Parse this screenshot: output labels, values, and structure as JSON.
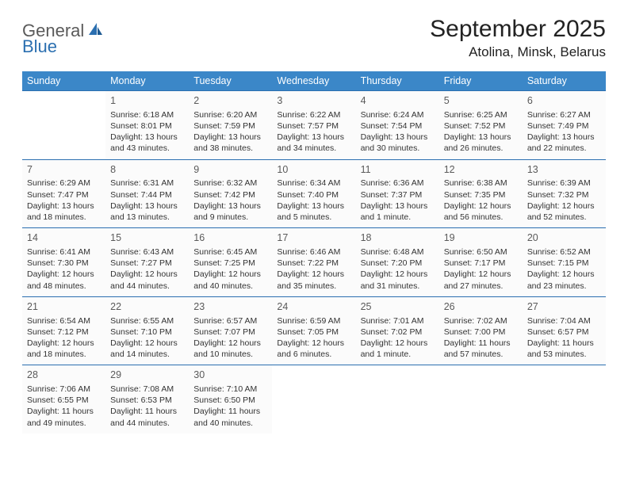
{
  "logo": {
    "word1": "General",
    "word2": "Blue"
  },
  "title": "September 2025",
  "location": "Atolina, Minsk, Belarus",
  "colors": {
    "header_bg": "#3b87c8",
    "header_text": "#ffffff",
    "border": "#2b6fb0",
    "logo_gray": "#5a5a5a",
    "logo_blue": "#2b6fb0",
    "cell_bg": "#fbfbfb",
    "page_bg": "#ffffff",
    "text": "#333333"
  },
  "dayNames": [
    "Sunday",
    "Monday",
    "Tuesday",
    "Wednesday",
    "Thursday",
    "Friday",
    "Saturday"
  ],
  "weeks": [
    [
      {
        "blank": true
      },
      {
        "d": "1",
        "sr": "Sunrise: 6:18 AM",
        "ss": "Sunset: 8:01 PM",
        "dl": "Daylight: 13 hours and 43 minutes."
      },
      {
        "d": "2",
        "sr": "Sunrise: 6:20 AM",
        "ss": "Sunset: 7:59 PM",
        "dl": "Daylight: 13 hours and 38 minutes."
      },
      {
        "d": "3",
        "sr": "Sunrise: 6:22 AM",
        "ss": "Sunset: 7:57 PM",
        "dl": "Daylight: 13 hours and 34 minutes."
      },
      {
        "d": "4",
        "sr": "Sunrise: 6:24 AM",
        "ss": "Sunset: 7:54 PM",
        "dl": "Daylight: 13 hours and 30 minutes."
      },
      {
        "d": "5",
        "sr": "Sunrise: 6:25 AM",
        "ss": "Sunset: 7:52 PM",
        "dl": "Daylight: 13 hours and 26 minutes."
      },
      {
        "d": "6",
        "sr": "Sunrise: 6:27 AM",
        "ss": "Sunset: 7:49 PM",
        "dl": "Daylight: 13 hours and 22 minutes."
      }
    ],
    [
      {
        "d": "7",
        "sr": "Sunrise: 6:29 AM",
        "ss": "Sunset: 7:47 PM",
        "dl": "Daylight: 13 hours and 18 minutes."
      },
      {
        "d": "8",
        "sr": "Sunrise: 6:31 AM",
        "ss": "Sunset: 7:44 PM",
        "dl": "Daylight: 13 hours and 13 minutes."
      },
      {
        "d": "9",
        "sr": "Sunrise: 6:32 AM",
        "ss": "Sunset: 7:42 PM",
        "dl": "Daylight: 13 hours and 9 minutes."
      },
      {
        "d": "10",
        "sr": "Sunrise: 6:34 AM",
        "ss": "Sunset: 7:40 PM",
        "dl": "Daylight: 13 hours and 5 minutes."
      },
      {
        "d": "11",
        "sr": "Sunrise: 6:36 AM",
        "ss": "Sunset: 7:37 PM",
        "dl": "Daylight: 13 hours and 1 minute."
      },
      {
        "d": "12",
        "sr": "Sunrise: 6:38 AM",
        "ss": "Sunset: 7:35 PM",
        "dl": "Daylight: 12 hours and 56 minutes."
      },
      {
        "d": "13",
        "sr": "Sunrise: 6:39 AM",
        "ss": "Sunset: 7:32 PM",
        "dl": "Daylight: 12 hours and 52 minutes."
      }
    ],
    [
      {
        "d": "14",
        "sr": "Sunrise: 6:41 AM",
        "ss": "Sunset: 7:30 PM",
        "dl": "Daylight: 12 hours and 48 minutes."
      },
      {
        "d": "15",
        "sr": "Sunrise: 6:43 AM",
        "ss": "Sunset: 7:27 PM",
        "dl": "Daylight: 12 hours and 44 minutes."
      },
      {
        "d": "16",
        "sr": "Sunrise: 6:45 AM",
        "ss": "Sunset: 7:25 PM",
        "dl": "Daylight: 12 hours and 40 minutes."
      },
      {
        "d": "17",
        "sr": "Sunrise: 6:46 AM",
        "ss": "Sunset: 7:22 PM",
        "dl": "Daylight: 12 hours and 35 minutes."
      },
      {
        "d": "18",
        "sr": "Sunrise: 6:48 AM",
        "ss": "Sunset: 7:20 PM",
        "dl": "Daylight: 12 hours and 31 minutes."
      },
      {
        "d": "19",
        "sr": "Sunrise: 6:50 AM",
        "ss": "Sunset: 7:17 PM",
        "dl": "Daylight: 12 hours and 27 minutes."
      },
      {
        "d": "20",
        "sr": "Sunrise: 6:52 AM",
        "ss": "Sunset: 7:15 PM",
        "dl": "Daylight: 12 hours and 23 minutes."
      }
    ],
    [
      {
        "d": "21",
        "sr": "Sunrise: 6:54 AM",
        "ss": "Sunset: 7:12 PM",
        "dl": "Daylight: 12 hours and 18 minutes."
      },
      {
        "d": "22",
        "sr": "Sunrise: 6:55 AM",
        "ss": "Sunset: 7:10 PM",
        "dl": "Daylight: 12 hours and 14 minutes."
      },
      {
        "d": "23",
        "sr": "Sunrise: 6:57 AM",
        "ss": "Sunset: 7:07 PM",
        "dl": "Daylight: 12 hours and 10 minutes."
      },
      {
        "d": "24",
        "sr": "Sunrise: 6:59 AM",
        "ss": "Sunset: 7:05 PM",
        "dl": "Daylight: 12 hours and 6 minutes."
      },
      {
        "d": "25",
        "sr": "Sunrise: 7:01 AM",
        "ss": "Sunset: 7:02 PM",
        "dl": "Daylight: 12 hours and 1 minute."
      },
      {
        "d": "26",
        "sr": "Sunrise: 7:02 AM",
        "ss": "Sunset: 7:00 PM",
        "dl": "Daylight: 11 hours and 57 minutes."
      },
      {
        "d": "27",
        "sr": "Sunrise: 7:04 AM",
        "ss": "Sunset: 6:57 PM",
        "dl": "Daylight: 11 hours and 53 minutes."
      }
    ],
    [
      {
        "d": "28",
        "sr": "Sunrise: 7:06 AM",
        "ss": "Sunset: 6:55 PM",
        "dl": "Daylight: 11 hours and 49 minutes."
      },
      {
        "d": "29",
        "sr": "Sunrise: 7:08 AM",
        "ss": "Sunset: 6:53 PM",
        "dl": "Daylight: 11 hours and 44 minutes."
      },
      {
        "d": "30",
        "sr": "Sunrise: 7:10 AM",
        "ss": "Sunset: 6:50 PM",
        "dl": "Daylight: 11 hours and 40 minutes."
      },
      {
        "blank": true
      },
      {
        "blank": true
      },
      {
        "blank": true
      },
      {
        "blank": true
      }
    ]
  ]
}
